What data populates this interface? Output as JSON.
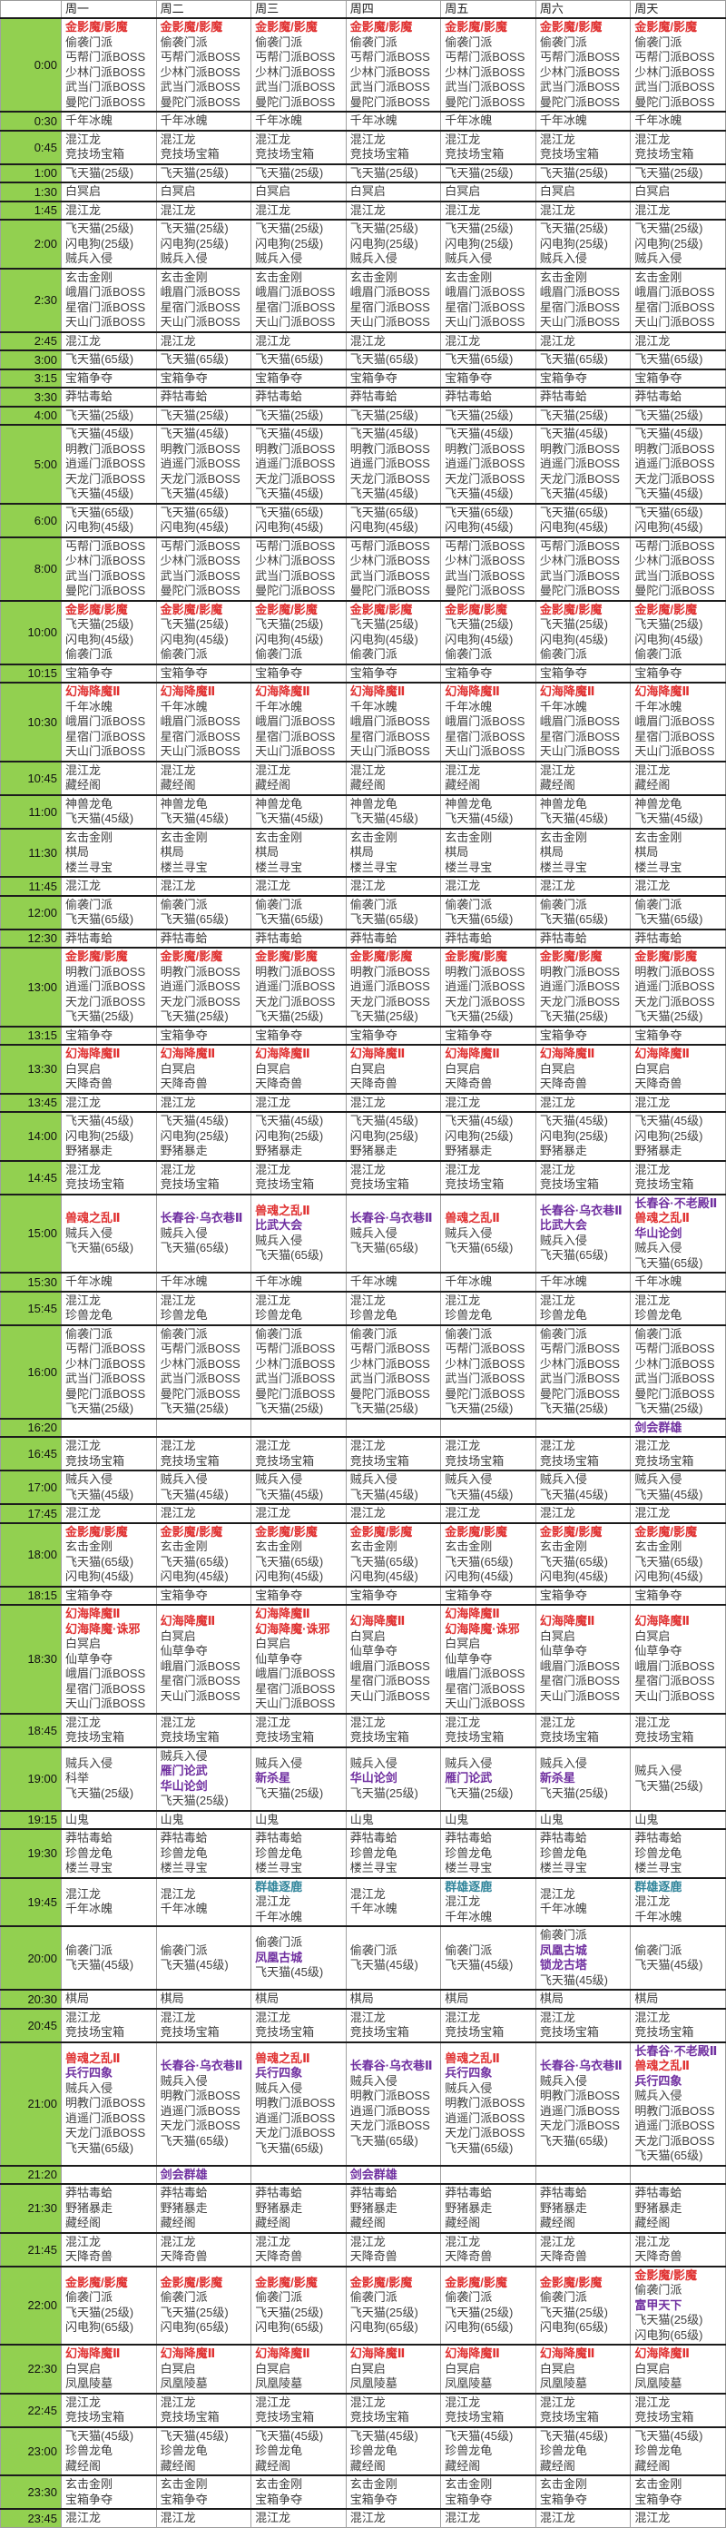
{
  "days": [
    "周一",
    "周二",
    "周三",
    "周四",
    "周五",
    "周六",
    "周天"
  ],
  "colors": {
    "normal_text": "#3f3f3f",
    "boss_red": "#e03131",
    "activity_purple": "#7030a0",
    "pvp_teal": "#31859b",
    "time_column_bg": "#92d050"
  },
  "rows": [
    {
      "t": "0:00",
      "s": [
        [
          "金影魔/影魔",
          "red"
        ],
        "偷袭门派",
        "丐帮门派BOSS",
        "少林门派BOSS",
        "武当门派BOSS",
        "曼陀门派BOSS"
      ]
    },
    {
      "t": "0:30",
      "s": [
        "千年冰魄"
      ]
    },
    {
      "t": "0:45",
      "s": [
        "混江龙",
        "竞技场宝箱"
      ]
    },
    {
      "t": "1:00",
      "s": [
        "飞天猫(25级)"
      ]
    },
    {
      "t": "1:30",
      "s": [
        "白冥启"
      ]
    },
    {
      "t": "1:45",
      "s": [
        "混江龙"
      ]
    },
    {
      "t": "2:00",
      "s": [
        "飞天猫(25级)",
        "闪电狗(25级)",
        "贼兵入侵"
      ]
    },
    {
      "t": "2:30",
      "s": [
        "玄击金刚",
        "峨眉门派BOSS",
        "星宿门派BOSS",
        "天山门派BOSS"
      ]
    },
    {
      "t": "2:45",
      "s": [
        "混江龙"
      ]
    },
    {
      "t": "3:00",
      "s": [
        "飞天猫(65级)"
      ]
    },
    {
      "t": "3:15",
      "s": [
        "宝箱争夺"
      ]
    },
    {
      "t": "3:30",
      "s": [
        "莽牯毒蛤"
      ]
    },
    {
      "t": "4:00",
      "s": [
        "飞天猫(25级)"
      ]
    },
    {
      "t": "5:00",
      "s": [
        "飞天猫(45级)",
        "明教门派BOSS",
        "逍遥门派BOSS",
        "天龙门派BOSS",
        "飞天猫(45级)"
      ]
    },
    {
      "t": "6:00",
      "s": [
        "飞天猫(65级)",
        "闪电狗(45级)"
      ]
    },
    {
      "t": "8:00",
      "s": [
        "丐帮门派BOSS",
        "少林门派BOSS",
        "武当门派BOSS",
        "曼陀门派BOSS"
      ]
    },
    {
      "t": "10:00",
      "s": [
        [
          "金影魔/影魔",
          "red"
        ],
        "飞天猫(25级)",
        "闪电狗(45级)",
        "偷袭门派"
      ]
    },
    {
      "t": "10:15",
      "s": [
        "宝箱争夺"
      ]
    },
    {
      "t": "10:30",
      "s": [
        [
          "幻海降魔Ⅱ",
          "red"
        ],
        "千年冰魄",
        "峨眉门派BOSS",
        "星宿门派BOSS",
        "天山门派BOSS"
      ]
    },
    {
      "t": "10:45",
      "s": [
        "混江龙",
        "藏经阁"
      ]
    },
    {
      "t": "11:00",
      "s": [
        "神兽龙龟",
        "飞天猫(45级)"
      ]
    },
    {
      "t": "11:30",
      "s": [
        "玄击金刚",
        "棋局",
        "楼兰寻宝"
      ]
    },
    {
      "t": "11:45",
      "s": [
        "混江龙"
      ]
    },
    {
      "t": "12:00",
      "s": [
        "偷袭门派",
        "飞天猫(65级)"
      ]
    },
    {
      "t": "12:30",
      "s": [
        "莽牯毒蛤"
      ]
    },
    {
      "t": "13:00",
      "s": [
        [
          "金影魔/影魔",
          "red"
        ],
        "明教门派BOSS",
        "逍遥门派BOSS",
        "天龙门派BOSS",
        "飞天猫(25级)"
      ]
    },
    {
      "t": "13:15",
      "s": [
        "宝箱争夺"
      ]
    },
    {
      "t": "13:30",
      "s": [
        [
          "幻海降魔Ⅱ",
          "red"
        ],
        "白冥启",
        "天降奇兽"
      ]
    },
    {
      "t": "13:45",
      "s": [
        "混江龙"
      ]
    },
    {
      "t": "14:00",
      "s": [
        "飞天猫(45级)",
        "闪电狗(25级)",
        "野猪暴走"
      ]
    },
    {
      "t": "14:45",
      "s": [
        "混江龙",
        "竞技场宝箱"
      ]
    },
    {
      "t": "15:00",
      "c": [
        [
          [
            "兽魂之乱Ⅱ",
            "red"
          ],
          "贼兵入侵",
          "飞天猫(65级)"
        ],
        [
          [
            "长春谷·乌衣巷Ⅱ",
            "purple"
          ],
          "贼兵入侵",
          "飞天猫(65级)"
        ],
        [
          [
            "兽魂之乱Ⅱ",
            "red"
          ],
          [
            "比武大会",
            "purple"
          ],
          "贼兵入侵",
          "飞天猫(65级)"
        ],
        [
          [
            "长春谷·乌衣巷Ⅱ",
            "purple"
          ],
          "贼兵入侵",
          "飞天猫(65级)"
        ],
        [
          [
            "兽魂之乱Ⅱ",
            "red"
          ],
          "贼兵入侵",
          "飞天猫(65级)"
        ],
        [
          [
            "长春谷·乌衣巷Ⅱ",
            "purple"
          ],
          [
            "比武大会",
            "purple"
          ],
          "贼兵入侵",
          "飞天猫(65级)"
        ],
        [
          [
            "长春谷·不老殿Ⅱ",
            "purple"
          ],
          [
            "兽魂之乱Ⅱ",
            "red"
          ],
          [
            "华山论剑",
            "purple"
          ],
          "贼兵入侵",
          "飞天猫(65级)"
        ]
      ]
    },
    {
      "t": "15:30",
      "s": [
        "千年冰魄"
      ]
    },
    {
      "t": "15:45",
      "s": [
        "混江龙",
        "珍兽龙龟"
      ]
    },
    {
      "t": "16:00",
      "s": [
        "偷袭门派",
        "丐帮门派BOSS",
        "少林门派BOSS",
        "武当门派BOSS",
        "曼陀门派BOSS",
        "飞天猫(25级)"
      ]
    },
    {
      "t": "16:20",
      "c": [
        [],
        [],
        [],
        [],
        [],
        [],
        [
          [
            "剑会群雄",
            "purple"
          ]
        ]
      ]
    },
    {
      "t": "16:45",
      "s": [
        "混江龙",
        "竞技场宝箱"
      ]
    },
    {
      "t": "17:00",
      "s": [
        "贼兵入侵",
        "飞天猫(45级)"
      ]
    },
    {
      "t": "17:45",
      "s": [
        "混江龙"
      ]
    },
    {
      "t": "18:00",
      "s": [
        [
          "金影魔/影魔",
          "red"
        ],
        "玄击金刚",
        "飞天猫(65级)",
        "闪电狗(45级)"
      ]
    },
    {
      "t": "18:15",
      "s": [
        "宝箱争夺"
      ]
    },
    {
      "t": "18:30",
      "c": [
        [
          [
            "幻海降魔Ⅱ",
            "red"
          ],
          [
            "幻海降魔·诛邪",
            "red"
          ],
          "白冥启",
          "仙草争夺",
          "峨眉门派BOSS",
          "星宿门派BOSS",
          "天山门派BOSS"
        ],
        [
          [
            "幻海降魔Ⅱ",
            "red"
          ],
          "白冥启",
          "仙草争夺",
          "峨眉门派BOSS",
          "星宿门派BOSS",
          "天山门派BOSS"
        ],
        [
          [
            "幻海降魔Ⅱ",
            "red"
          ],
          [
            "幻海降魔·诛邪",
            "red"
          ],
          "白冥启",
          "仙草争夺",
          "峨眉门派BOSS",
          "星宿门派BOSS",
          "天山门派BOSS"
        ],
        [
          [
            "幻海降魔Ⅱ",
            "red"
          ],
          "白冥启",
          "仙草争夺",
          "峨眉门派BOSS",
          "星宿门派BOSS",
          "天山门派BOSS"
        ],
        [
          [
            "幻海降魔Ⅱ",
            "red"
          ],
          [
            "幻海降魔·诛邪",
            "red"
          ],
          "白冥启",
          "仙草争夺",
          "峨眉门派BOSS",
          "星宿门派BOSS",
          "天山门派BOSS"
        ],
        [
          [
            "幻海降魔Ⅱ",
            "red"
          ],
          "白冥启",
          "仙草争夺",
          "峨眉门派BOSS",
          "星宿门派BOSS",
          "天山门派BOSS"
        ],
        [
          [
            "幻海降魔Ⅱ",
            "red"
          ],
          "白冥启",
          "仙草争夺",
          "峨眉门派BOSS",
          "星宿门派BOSS",
          "天山门派BOSS"
        ]
      ]
    },
    {
      "t": "18:45",
      "s": [
        "混江龙",
        "竞技场宝箱"
      ]
    },
    {
      "t": "19:00",
      "c": [
        [
          "贼兵入侵",
          "科举",
          "飞天猫(25级)"
        ],
        [
          "贼兵入侵",
          [
            "雁门论武",
            "purple"
          ],
          [
            "华山论剑",
            "purple"
          ],
          "飞天猫(25级)"
        ],
        [
          "贼兵入侵",
          [
            "新杀星",
            "purple"
          ],
          "飞天猫(25级)"
        ],
        [
          "贼兵入侵",
          [
            "华山论剑",
            "purple"
          ],
          "飞天猫(25级)"
        ],
        [
          "贼兵入侵",
          [
            "雁门论武",
            "purple"
          ],
          "飞天猫(25级)"
        ],
        [
          "贼兵入侵",
          [
            "新杀星",
            "purple"
          ],
          "飞天猫(25级)"
        ],
        [
          "贼兵入侵",
          "飞天猫(25级)"
        ]
      ]
    },
    {
      "t": "19:15",
      "s": [
        "山鬼"
      ]
    },
    {
      "t": "19:30",
      "s": [
        "莽牯毒蛤",
        "珍兽龙龟",
        "楼兰寻宝"
      ]
    },
    {
      "t": "19:45",
      "c": [
        [
          "混江龙",
          "千年冰魄"
        ],
        [
          "混江龙",
          "千年冰魄"
        ],
        [
          [
            "群雄逐鹿",
            "teal"
          ],
          "混江龙",
          "千年冰魄"
        ],
        [
          "混江龙",
          "千年冰魄"
        ],
        [
          [
            "群雄逐鹿",
            "teal"
          ],
          "混江龙",
          "千年冰魄"
        ],
        [
          "混江龙",
          "千年冰魄"
        ],
        [
          [
            "群雄逐鹿",
            "teal"
          ],
          "混江龙",
          "千年冰魄"
        ]
      ]
    },
    {
      "t": "20:00",
      "c": [
        [
          "偷袭门派",
          "飞天猫(45级)"
        ],
        [
          "偷袭门派",
          "飞天猫(45级)"
        ],
        [
          "偷袭门派",
          [
            "凤凰古城",
            "purple"
          ],
          "飞天猫(45级)"
        ],
        [
          "偷袭门派",
          "飞天猫(45级)"
        ],
        [
          "偷袭门派",
          "飞天猫(45级)"
        ],
        [
          "偷袭门派",
          [
            "凤凰古城",
            "purple"
          ],
          [
            "锁龙古塔",
            "purple"
          ],
          "飞天猫(45级)"
        ],
        [
          "偷袭门派",
          "飞天猫(45级)"
        ]
      ]
    },
    {
      "t": "20:30",
      "s": [
        "棋局"
      ]
    },
    {
      "t": "20:45",
      "s": [
        "混江龙",
        "竞技场宝箱"
      ]
    },
    {
      "t": "21:00",
      "c": [
        [
          [
            "兽魂之乱Ⅱ",
            "red"
          ],
          [
            "兵行四象",
            "purple"
          ],
          "贼兵入侵",
          "明教门派BOSS",
          "逍遥门派BOSS",
          "天龙门派BOSS",
          "飞天猫(65级)"
        ],
        [
          [
            "长春谷·乌衣巷Ⅱ",
            "purple"
          ],
          "贼兵入侵",
          "明教门派BOSS",
          "逍遥门派BOSS",
          "天龙门派BOSS",
          "飞天猫(65级)"
        ],
        [
          [
            "兽魂之乱Ⅱ",
            "red"
          ],
          [
            "兵行四象",
            "purple"
          ],
          "贼兵入侵",
          "明教门派BOSS",
          "逍遥门派BOSS",
          "天龙门派BOSS",
          "飞天猫(65级)"
        ],
        [
          [
            "长春谷·乌衣巷Ⅱ",
            "purple"
          ],
          "贼兵入侵",
          "明教门派BOSS",
          "逍遥门派BOSS",
          "天龙门派BOSS",
          "飞天猫(65级)"
        ],
        [
          [
            "兽魂之乱Ⅱ",
            "red"
          ],
          [
            "兵行四象",
            "purple"
          ],
          "贼兵入侵",
          "明教门派BOSS",
          "逍遥门派BOSS",
          "天龙门派BOSS",
          "飞天猫(65级)"
        ],
        [
          [
            "长春谷·乌衣巷Ⅱ",
            "purple"
          ],
          "贼兵入侵",
          "明教门派BOSS",
          "逍遥门派BOSS",
          "天龙门派BOSS",
          "飞天猫(65级)"
        ],
        [
          [
            "长春谷·不老殿Ⅱ",
            "purple"
          ],
          [
            "兽魂之乱Ⅱ",
            "red"
          ],
          [
            "兵行四象",
            "purple"
          ],
          "贼兵入侵",
          "明教门派BOSS",
          "逍遥门派BOSS",
          "天龙门派BOSS",
          "飞天猫(65级)"
        ]
      ]
    },
    {
      "t": "21:20",
      "c": [
        [],
        [
          [
            "剑会群雄",
            "purple"
          ]
        ],
        [],
        [
          [
            "剑会群雄",
            "purple"
          ]
        ],
        [],
        [],
        []
      ]
    },
    {
      "t": "21:30",
      "s": [
        "莽牯毒蛤",
        "野猪暴走",
        "藏经阁"
      ]
    },
    {
      "t": "21:45",
      "s": [
        "混江龙",
        "天降奇兽"
      ]
    },
    {
      "t": "22:00",
      "c": [
        [
          [
            "金影魔/影魔",
            "red"
          ],
          "偷袭门派",
          "飞天猫(25级)",
          "闪电狗(65级)"
        ],
        [
          [
            "金影魔/影魔",
            "red"
          ],
          "偷袭门派",
          "飞天猫(25级)",
          "闪电狗(65级)"
        ],
        [
          [
            "金影魔/影魔",
            "red"
          ],
          "偷袭门派",
          "飞天猫(25级)",
          "闪电狗(65级)"
        ],
        [
          [
            "金影魔/影魔",
            "red"
          ],
          "偷袭门派",
          "飞天猫(25级)",
          "闪电狗(65级)"
        ],
        [
          [
            "金影魔/影魔",
            "red"
          ],
          "偷袭门派",
          "飞天猫(25级)",
          "闪电狗(65级)"
        ],
        [
          [
            "金影魔/影魔",
            "red"
          ],
          "偷袭门派",
          "飞天猫(25级)",
          "闪电狗(65级)"
        ],
        [
          [
            "金影魔/影魔",
            "red"
          ],
          "偷袭门派",
          [
            "富甲天下",
            "purple"
          ],
          "飞天猫(25级)",
          "闪电狗(65级)"
        ]
      ]
    },
    {
      "t": "22:30",
      "s": [
        [
          "幻海降魔Ⅱ",
          "red"
        ],
        "白冥启",
        "凤凰陵墓"
      ]
    },
    {
      "t": "22:45",
      "s": [
        "混江龙",
        "竞技场宝箱"
      ]
    },
    {
      "t": "23:00",
      "s": [
        "飞天猫(45级)",
        "珍兽龙龟",
        "藏经阁"
      ]
    },
    {
      "t": "23:30",
      "s": [
        "玄击金刚",
        "宝箱争夺"
      ]
    },
    {
      "t": "23:45",
      "s": [
        "混江龙"
      ]
    }
  ]
}
